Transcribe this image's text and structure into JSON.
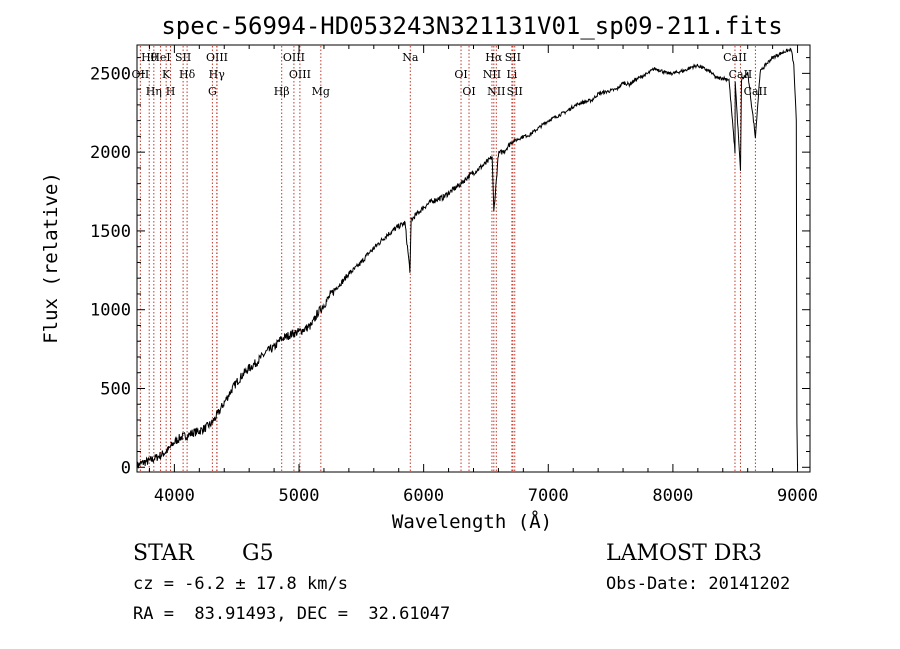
{
  "chart_data": {
    "type": "line",
    "title": "spec-56994-HD053243N321131V01_sp09-211.fits",
    "xlabel": "Wavelength (Å)",
    "ylabel": "Flux (relative)",
    "xlim": [
      3700,
      9100
    ],
    "ylim": [
      -30,
      2680
    ],
    "xticks": [
      4000,
      5000,
      6000,
      7000,
      8000,
      9000
    ],
    "yticks": [
      0,
      500,
      1000,
      1500,
      2000,
      2500
    ],
    "series": [
      {
        "name": "flux",
        "x": [
          3700,
          3750,
          3800,
          3850,
          3900,
          3950,
          4000,
          4050,
          4100,
          4150,
          4200,
          4250,
          4300,
          4350,
          4400,
          4450,
          4500,
          4550,
          4600,
          4650,
          4700,
          4750,
          4800,
          4850,
          4900,
          4950,
          5000,
          5050,
          5100,
          5150,
          5200,
          5250,
          5300,
          5350,
          5400,
          5450,
          5500,
          5550,
          5600,
          5650,
          5700,
          5750,
          5800,
          5850,
          5890,
          5900,
          5950,
          6000,
          6050,
          6100,
          6150,
          6200,
          6250,
          6300,
          6350,
          6400,
          6450,
          6500,
          6550,
          6563,
          6600,
          6650,
          6700,
          6750,
          6800,
          6850,
          6900,
          6950,
          7000,
          7050,
          7100,
          7150,
          7200,
          7250,
          7300,
          7350,
          7400,
          7450,
          7500,
          7550,
          7600,
          7650,
          7700,
          7750,
          7800,
          7850,
          7900,
          7950,
          8000,
          8050,
          8100,
          8150,
          8200,
          8250,
          8300,
          8350,
          8400,
          8450,
          8498,
          8500,
          8542,
          8550,
          8600,
          8662,
          8700,
          8750,
          8800,
          8850,
          8900,
          8950,
          8970,
          8990
        ],
        "y": [
          10,
          30,
          40,
          60,
          80,
          110,
          160,
          190,
          200,
          220,
          230,
          250,
          280,
          340,
          410,
          480,
          540,
          590,
          630,
          660,
          700,
          740,
          760,
          810,
          830,
          850,
          860,
          880,
          900,
          980,
          1030,
          1090,
          1140,
          1180,
          1230,
          1260,
          1300,
          1350,
          1390,
          1430,
          1470,
          1500,
          1530,
          1550,
          1250,
          1570,
          1610,
          1650,
          1680,
          1700,
          1710,
          1740,
          1770,
          1800,
          1840,
          1870,
          1900,
          1930,
          1970,
          1620,
          1990,
          2010,
          2060,
          2080,
          2100,
          2110,
          2140,
          2170,
          2200,
          2220,
          2240,
          2260,
          2290,
          2310,
          2320,
          2330,
          2370,
          2380,
          2390,
          2400,
          2440,
          2430,
          2460,
          2480,
          2500,
          2530,
          2520,
          2500,
          2500,
          2510,
          2520,
          2540,
          2550,
          2530,
          2510,
          2470,
          2470,
          2460,
          2000,
          2450,
          1880,
          2460,
          2500,
          2100,
          2510,
          2560,
          2600,
          2620,
          2640,
          2650,
          2550,
          2200
        ]
      }
    ],
    "lines": [
      {
        "label": "Hθ",
        "x": 3798
      },
      {
        "label": "OII",
        "x": 3727
      },
      {
        "label": "Hη",
        "x": 3835
      },
      {
        "label": "HeI",
        "x": 3889
      },
      {
        "label": "K",
        "x": 3934
      },
      {
        "label": "H",
        "x": 3969
      },
      {
        "label": "SII",
        "x": 4070
      },
      {
        "label": "Hδ",
        "x": 4102
      },
      {
        "label": "G",
        "x": 4305
      },
      {
        "label": "OIII",
        "x": 4342
      },
      {
        "label": "Hγ",
        "x": 4340
      },
      {
        "label": "Hβ",
        "x": 4861
      },
      {
        "label": "OIII",
        "x": 4959
      },
      {
        "label": "OIII",
        "x": 5007
      },
      {
        "label": "Mg",
        "x": 5175
      },
      {
        "label": "Na",
        "x": 5893
      },
      {
        "label": "OI",
        "x": 6300
      },
      {
        "label": "OI",
        "x": 6364
      },
      {
        "label": "Hα",
        "x": 6563
      },
      {
        "label": "NII",
        "x": 6548
      },
      {
        "label": "NII",
        "x": 6583
      },
      {
        "label": "SII",
        "x": 6716
      },
      {
        "label": "Li",
        "x": 6708
      },
      {
        "label": "SII",
        "x": 6731
      },
      {
        "label": "CaII",
        "x": 8498
      },
      {
        "label": "CaII",
        "x": 8542
      },
      {
        "label": "CaII",
        "x": 8662
      }
    ]
  },
  "info": {
    "class": "STAR",
    "subclass": "G5",
    "survey": "LAMOST DR3",
    "cz": "cz = -6.2 ± 17.8 km/s",
    "obs_date": "Obs-Date: 20141202",
    "coords": "RA =  83.91493, DEC =  32.61047"
  },
  "colors": {
    "line": "#000000",
    "marker": "#c0392b"
  }
}
